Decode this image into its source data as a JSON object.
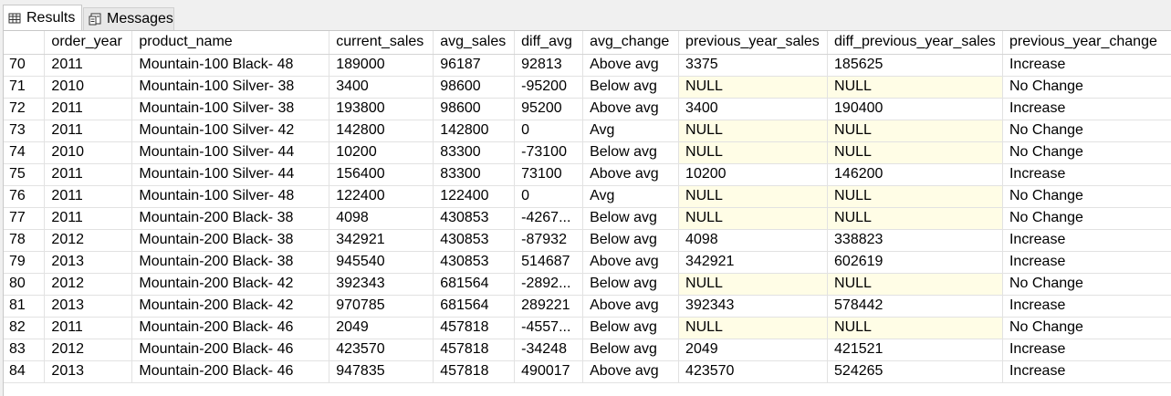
{
  "tabs": [
    {
      "label": "Results",
      "active": true,
      "icon": "grid-icon"
    },
    {
      "label": "Messages",
      "active": false,
      "icon": "messages-icon"
    }
  ],
  "grid": {
    "columns": [
      "",
      "order_year",
      "product_name",
      "current_sales",
      "avg_sales",
      "diff_avg",
      "avg_change",
      "previous_year_sales",
      "diff_previous_year_sales",
      "previous_year_change"
    ],
    "null_highlight_color": "#fffde6",
    "rows": [
      [
        "70",
        "2011",
        "Mountain-100 Black- 48",
        "189000",
        "96187",
        "92813",
        "Above avg",
        "3375",
        "185625",
        "Increase"
      ],
      [
        "71",
        "2010",
        "Mountain-100 Silver- 38",
        "3400",
        "98600",
        "-95200",
        "Below avg",
        "NULL",
        "NULL",
        "No Change"
      ],
      [
        "72",
        "2011",
        "Mountain-100 Silver- 38",
        "193800",
        "98600",
        "95200",
        "Above avg",
        "3400",
        "190400",
        "Increase"
      ],
      [
        "73",
        "2011",
        "Mountain-100 Silver- 42",
        "142800",
        "142800",
        "0",
        "Avg",
        "NULL",
        "NULL",
        "No Change"
      ],
      [
        "74",
        "2010",
        "Mountain-100 Silver- 44",
        "10200",
        "83300",
        "-73100",
        "Below avg",
        "NULL",
        "NULL",
        "No Change"
      ],
      [
        "75",
        "2011",
        "Mountain-100 Silver- 44",
        "156400",
        "83300",
        "73100",
        "Above avg",
        "10200",
        "146200",
        "Increase"
      ],
      [
        "76",
        "2011",
        "Mountain-100 Silver- 48",
        "122400",
        "122400",
        "0",
        "Avg",
        "NULL",
        "NULL",
        "No Change"
      ],
      [
        "77",
        "2011",
        "Mountain-200 Black- 38",
        "4098",
        "430853",
        "-4267...",
        "Below avg",
        "NULL",
        "NULL",
        "No Change"
      ],
      [
        "78",
        "2012",
        "Mountain-200 Black- 38",
        "342921",
        "430853",
        "-87932",
        "Below avg",
        "4098",
        "338823",
        "Increase"
      ],
      [
        "79",
        "2013",
        "Mountain-200 Black- 38",
        "945540",
        "430853",
        "514687",
        "Above avg",
        "342921",
        "602619",
        "Increase"
      ],
      [
        "80",
        "2012",
        "Mountain-200 Black- 42",
        "392343",
        "681564",
        "-2892...",
        "Below avg",
        "NULL",
        "NULL",
        "No Change"
      ],
      [
        "81",
        "2013",
        "Mountain-200 Black- 42",
        "970785",
        "681564",
        "289221",
        "Above avg",
        "392343",
        "578442",
        "Increase"
      ],
      [
        "82",
        "2011",
        "Mountain-200 Black- 46",
        "2049",
        "457818",
        "-4557...",
        "Below avg",
        "NULL",
        "NULL",
        "No Change"
      ],
      [
        "83",
        "2012",
        "Mountain-200 Black- 46",
        "423570",
        "457818",
        "-34248",
        "Below avg",
        "2049",
        "421521",
        "Increase"
      ],
      [
        "84",
        "2013",
        "Mountain-200 Black- 46",
        "947835",
        "457818",
        "490017",
        "Above avg",
        "423570",
        "524265",
        "Increase"
      ]
    ]
  }
}
